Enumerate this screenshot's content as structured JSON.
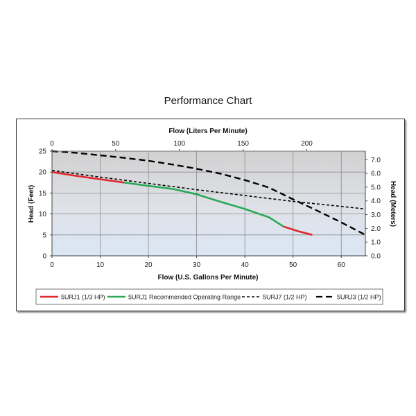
{
  "page": {
    "title": "Performance Chart"
  },
  "chart_data": {
    "type": "line",
    "xlabel": "Flow (U.S. Gallons Per Minute)",
    "x_top_label": "Flow (Liters Per Minute)",
    "ylabel": "Head (Feet)",
    "y_right_label": "Head (Meters)",
    "xlim": [
      0,
      65
    ],
    "ylim": [
      0,
      25
    ],
    "x_top_lim": [
      0,
      246
    ],
    "y_right_lim": [
      0,
      7.62
    ],
    "x_ticks": [
      "0",
      "10",
      "20",
      "30",
      "40",
      "50",
      "60"
    ],
    "y_ticks": [
      "0",
      "5",
      "10",
      "15",
      "20",
      "25"
    ],
    "x_top_ticks": [
      "0",
      "50",
      "100",
      "150",
      "200"
    ],
    "y_right_ticks": [
      "0.0",
      "1.0",
      "2.0",
      "3.0",
      "4.0",
      "5.0",
      "6.0",
      "7.0"
    ],
    "grid": true,
    "legend_position": "bottom",
    "series": [
      {
        "name": "5URJ1 (1/3 HP)",
        "color": "#e0262b",
        "style": "solid",
        "x": [
          0,
          5,
          10,
          15
        ],
        "y": [
          20,
          19.1,
          18.3,
          17.5
        ]
      },
      {
        "name": "5URJ1 Recommended Operating Range",
        "color": "#2aa957",
        "style": "solid",
        "x": [
          15,
          20,
          25,
          30,
          35,
          40,
          45,
          48
        ],
        "y": [
          17.5,
          16.7,
          16,
          14.7,
          12.9,
          11.2,
          9.2,
          7
        ]
      },
      {
        "name": "",
        "color": "#e0262b",
        "style": "solid",
        "x": [
          48,
          51,
          54
        ],
        "y": [
          7,
          5.9,
          5
        ]
      },
      {
        "name": "5URJ7 (1/2 HP)",
        "color": "#000000",
        "style": "short-dash",
        "x": [
          0,
          10,
          20,
          30,
          40,
          50,
          60,
          65
        ],
        "y": [
          20.4,
          18.8,
          17.3,
          15.8,
          14.4,
          13,
          11.8,
          11.2
        ]
      },
      {
        "name": "5URJ3 (1/2 HP)",
        "color": "#000000",
        "style": "long-dash",
        "x": [
          0,
          5,
          10,
          15,
          20,
          25,
          30,
          35,
          40,
          45,
          50,
          55,
          60,
          65
        ],
        "y": [
          25,
          24.6,
          24,
          23.4,
          22.7,
          21.8,
          20.8,
          19.6,
          18.1,
          16.3,
          13.5,
          10.8,
          8,
          5
        ]
      }
    ]
  }
}
